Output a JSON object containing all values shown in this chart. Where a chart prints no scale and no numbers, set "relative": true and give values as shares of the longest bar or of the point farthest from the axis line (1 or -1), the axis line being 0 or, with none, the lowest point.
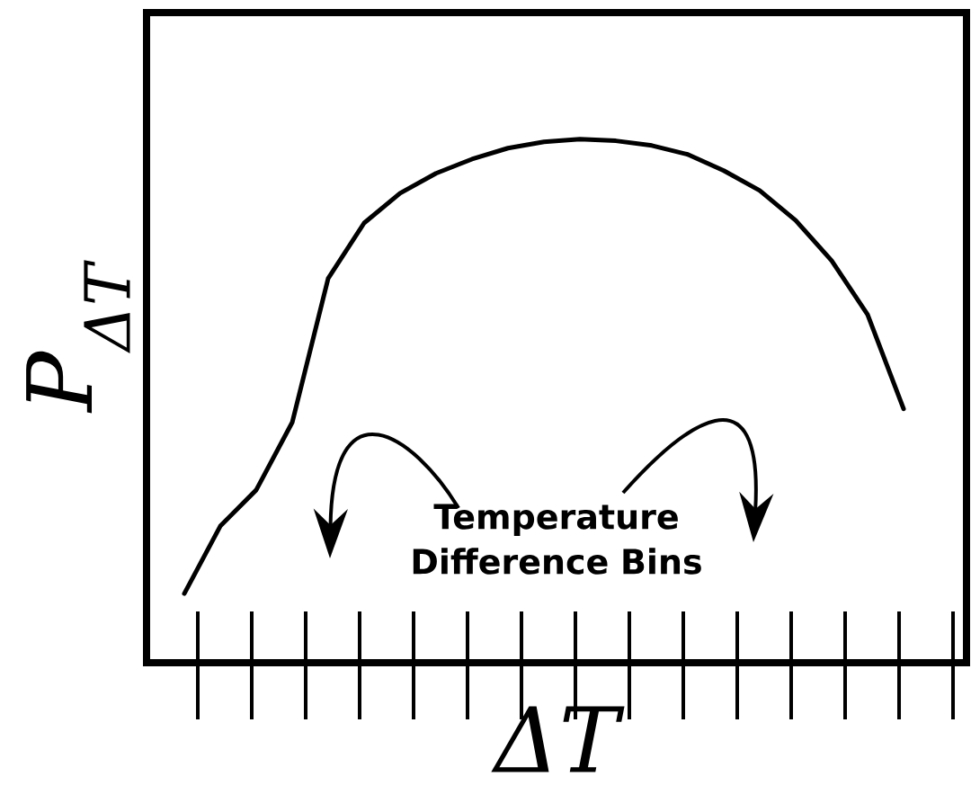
{
  "chart_data": {
    "type": "line",
    "xlabel": "ΔT",
    "ylabel": "P$_{ΔT}$",
    "annotations": [
      "Temperature Difference Bins"
    ],
    "relative": true,
    "marker": "none",
    "color": "#000000",
    "categories": [
      null,
      null,
      null,
      null,
      null,
      null,
      null,
      null,
      null,
      null,
      null,
      null,
      null,
      null,
      null,
      null,
      null,
      null,
      null,
      null,
      null
    ],
    "values": [
      0.132,
      0.261,
      0.33,
      0.459,
      0.734,
      0.84,
      0.897,
      0.935,
      0.962,
      0.983,
      0.995,
      1.0,
      0.997,
      0.988,
      0.971,
      0.94,
      0.902,
      0.845,
      0.768,
      0.665,
      0.485
    ]
  }
}
